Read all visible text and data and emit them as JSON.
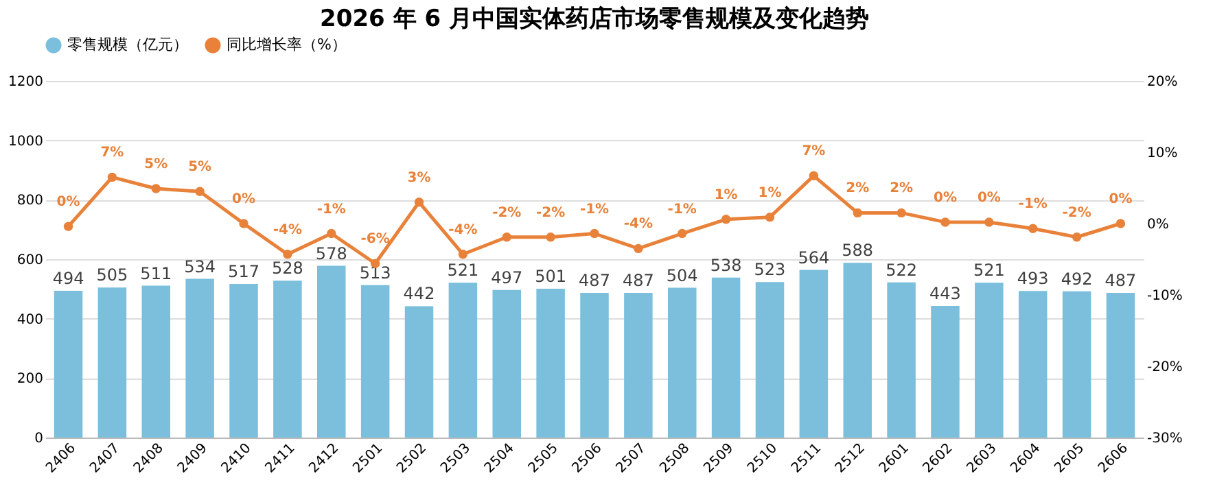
{
  "chart_data": {
    "type": "bar",
    "title": "2026 年 6 月中国实体药店市场零售规模及变化趋势",
    "categories": [
      "2406",
      "2407",
      "2408",
      "2409",
      "2410",
      "2411",
      "2412",
      "2501",
      "2502",
      "2503",
      "2504",
      "2505",
      "2506",
      "2507",
      "2508",
      "2509",
      "2510",
      "2511",
      "2512",
      "2601",
      "2602",
      "2603",
      "2604",
      "2605",
      "2606"
    ],
    "series": [
      {
        "name": "零售规模（亿元）",
        "color": "#7bbfdc",
        "values": [
          494,
          505,
          511,
          534,
          517,
          528,
          578,
          513,
          442,
          521,
          497,
          501,
          487,
          487,
          504,
          538,
          523,
          564,
          588,
          522,
          443,
          521,
          493,
          492,
          487
        ]
      },
      {
        "name": "同比增长率（%）",
        "type": "line",
        "axis": "y2",
        "color": "#e8823a",
        "marker": "circle",
        "values": [
          -0.4,
          6.5,
          4.9,
          4.5,
          0.0,
          -4.3,
          -1.4,
          -5.6,
          3.0,
          -4.3,
          -1.9,
          -1.9,
          -1.4,
          -3.5,
          -1.4,
          0.6,
          0.9,
          6.7,
          1.5,
          1.5,
          0.2,
          0.2,
          -0.7,
          -1.9,
          0.0
        ],
        "value_labels": [
          "0%",
          "7%",
          "5%",
          "5%",
          "0%",
          "-4%",
          "-1%",
          "-6%",
          "3%",
          "-4%",
          "-2%",
          "-2%",
          "-1%",
          "-4%",
          "-1%",
          "1%",
          "1%",
          "7%",
          "2%",
          "2%",
          "0%",
          "0%",
          "-1%",
          "-2%",
          "0%"
        ]
      }
    ],
    "ylim": [
      0,
      1200
    ],
    "yticks": [
      0,
      200,
      400,
      600,
      800,
      1000,
      1200
    ],
    "y2lim": [
      -30,
      20
    ],
    "y2ticks": [
      {
        "value": -30,
        "label": "-30%"
      },
      {
        "value": -20,
        "label": "-20%"
      },
      {
        "value": -10,
        "label": "-10%"
      },
      {
        "value": 0,
        "label": "0%"
      },
      {
        "value": 10,
        "label": "10%"
      },
      {
        "value": 20,
        "label": "20%"
      }
    ],
    "data_labels": true,
    "grid": "y",
    "legend": "top"
  }
}
